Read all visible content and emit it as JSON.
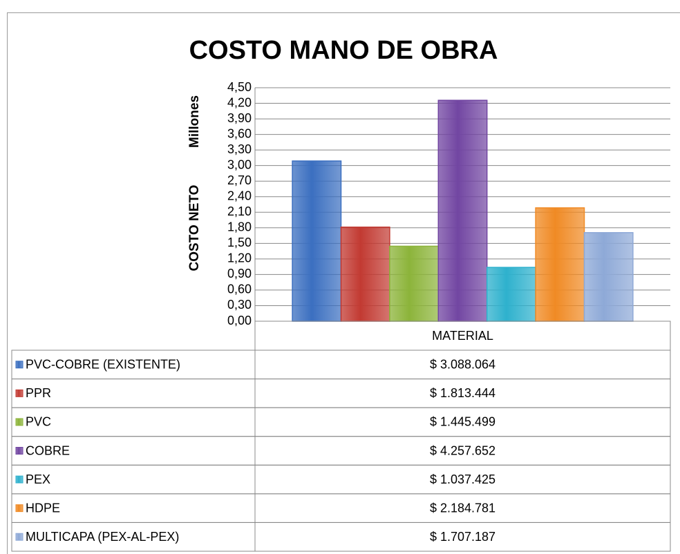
{
  "chart_data": {
    "type": "bar",
    "title": "COSTO MANO DE OBRA",
    "y_label": "COSTO NETO",
    "unit_label": "Millones",
    "categories": [
      "MATERIAL"
    ],
    "series": [
      {
        "name": "PVC-COBRE (EXISTENTE)",
        "color": "#3b6fc0",
        "values": [
          3.088064
        ],
        "value_labels": [
          "$ 3.088.064"
        ]
      },
      {
        "name": "PPR",
        "color": "#c23a32",
        "values": [
          1.813444
        ],
        "value_labels": [
          "$ 1.813.444"
        ]
      },
      {
        "name": "PVC",
        "color": "#8cb43a",
        "values": [
          1.445499
        ],
        "value_labels": [
          "$ 1.445.499"
        ]
      },
      {
        "name": "COBRE",
        "color": "#7246a2",
        "values": [
          4.257652
        ],
        "value_labels": [
          "$ 4.257.652"
        ]
      },
      {
        "name": "PEX",
        "color": "#2eb1cd",
        "values": [
          1.037425
        ],
        "value_labels": [
          "$ 1.037.425"
        ]
      },
      {
        "name": "HDPE",
        "color": "#f08a24",
        "values": [
          2.184781
        ],
        "value_labels": [
          "$ 2.184.781"
        ]
      },
      {
        "name": "MULTICAPA (PEX-AL-PEX)",
        "color": "#8ea9d7",
        "values": [
          1.707187
        ],
        "value_labels": [
          "$ 1.707.187"
        ]
      }
    ],
    "ylim": [
      0,
      4.5
    ],
    "yticks": [
      {
        "value": 0,
        "label": "0,00"
      },
      {
        "value": 0.3,
        "label": "0,30"
      },
      {
        "value": 0.6,
        "label": "0,60"
      },
      {
        "value": 0.9,
        "label": "0,90"
      },
      {
        "value": 1.2,
        "label": "1,20"
      },
      {
        "value": 1.5,
        "label": "1,50"
      },
      {
        "value": 1.8,
        "label": "1,80"
      },
      {
        "value": 2.1,
        "label": "2,10"
      },
      {
        "value": 2.4,
        "label": "2,40"
      },
      {
        "value": 2.7,
        "label": "2,70"
      },
      {
        "value": 3.0,
        "label": "3,00"
      },
      {
        "value": 3.3,
        "label": "3,30"
      },
      {
        "value": 3.6,
        "label": "3,60"
      },
      {
        "value": 3.9,
        "label": "3,90"
      },
      {
        "value": 4.2,
        "label": "4,20"
      },
      {
        "value": 4.5,
        "label": "4,50"
      }
    ],
    "grid": true
  }
}
